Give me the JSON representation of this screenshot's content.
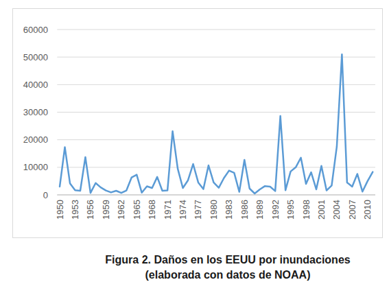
{
  "chart_data": {
    "type": "line",
    "title": "Figura 2. Daños en los EEUU por inundaciones",
    "subtitle": "(elaborada con datos de NOAA)",
    "categories": [
      "1950",
      null,
      null,
      "1953",
      null,
      null,
      "1956",
      null,
      null,
      "1959",
      null,
      null,
      "1962",
      null,
      null,
      "1965",
      null,
      null,
      "1968",
      null,
      null,
      "1971",
      null,
      null,
      "1974",
      null,
      null,
      "1977",
      null,
      null,
      "1980",
      null,
      null,
      "1983",
      null,
      null,
      "1986",
      null,
      null,
      "1989",
      null,
      null,
      "1992",
      null,
      null,
      "1995",
      null,
      null,
      "1998",
      null,
      null,
      "2001",
      null,
      null,
      "2004",
      null,
      null,
      "2007",
      null,
      null,
      "2010",
      null
    ],
    "values": [
      3000,
      17300,
      4200,
      1700,
      1500,
      13700,
      700,
      4300,
      2700,
      1600,
      900,
      1500,
      700,
      1600,
      6300,
      7300,
      800,
      3100,
      2500,
      6500,
      1500,
      1600,
      23100,
      9500,
      2500,
      5300,
      11200,
      4500,
      2100,
      10700,
      4500,
      2600,
      6100,
      8800,
      8000,
      1100,
      12700,
      2300,
      500,
      2000,
      3200,
      3000,
      1400,
      28600,
      1700,
      8500,
      10000,
      13500,
      4000,
      8200,
      2000,
      10500,
      1600,
      3400,
      17500,
      51000,
      4500,
      3000,
      7600,
      1200,
      5000,
      8300
    ],
    "color": "#5b9bd5",
    "ylim": [
      0,
      60000
    ],
    "yticks": [
      0,
      10000,
      20000,
      30000,
      40000,
      50000,
      60000
    ],
    "grid": true
  }
}
